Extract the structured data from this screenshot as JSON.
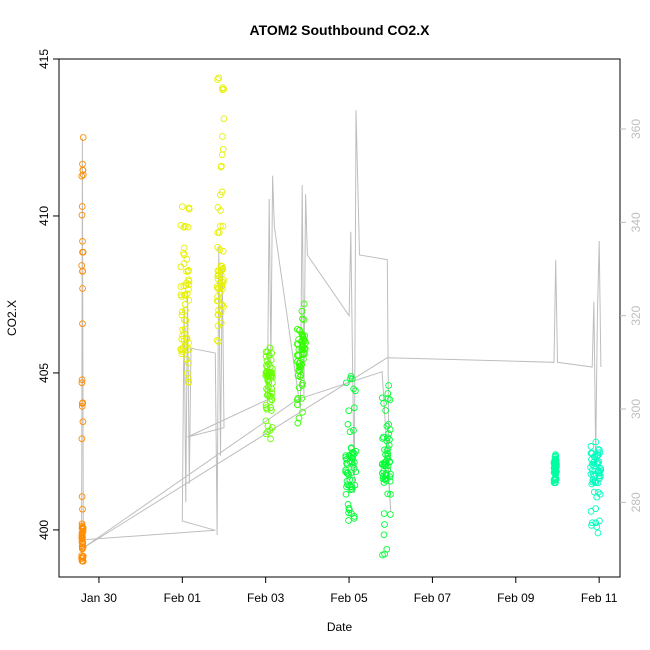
{
  "chart_data": {
    "type": "scatter",
    "title": "ATOM2 Southbound CO2.X",
    "xlabel": "Date",
    "ylabel": "CO2.X",
    "xlim": [
      "2016-01-29 01:00",
      "2016-02-11 12:00"
    ],
    "ylim": [
      398.5,
      415
    ],
    "y2lim": [
      264,
      375
    ],
    "x_ticks": [
      "Jan 30",
      "Feb 01",
      "Feb 03",
      "Feb 05",
      "Feb 07",
      "Feb 09",
      "Feb 11"
    ],
    "y_ticks": [
      400,
      405,
      410,
      415
    ],
    "y2_ticks": [
      280,
      300,
      320,
      340,
      360
    ],
    "grid": false,
    "legend": "none",
    "point_clusters": [
      {
        "x_start": "2016-01-29 14:00",
        "x_end": "2016-01-29 15:00",
        "y_min": 399.0,
        "y_max": 412.5,
        "color": "#ff8c00",
        "dense": [
          [
            399.0,
            400.2
          ]
        ]
      },
      {
        "x_start": "2016-01-31 23:00",
        "x_end": "2016-02-01 04:00",
        "y_min": 404.7,
        "y_max": 410.3,
        "color": "#e6f000",
        "dense": [
          [
            405.5,
            408.5
          ]
        ]
      },
      {
        "x_start": "2016-02-01 20:00",
        "x_end": "2016-02-02 00:00",
        "y_min": 406.0,
        "y_max": 414.4,
        "color": "#e6f000",
        "dense": [
          [
            406.5,
            408.5
          ]
        ]
      },
      {
        "x_start": "2016-02-03 00:00",
        "x_end": "2016-02-03 04:00",
        "y_min": 402.9,
        "y_max": 405.8,
        "color": "#66ff00",
        "dense": [
          [
            403.8,
            405.2
          ]
        ]
      },
      {
        "x_start": "2016-02-03 18:00",
        "x_end": "2016-02-03 23:00",
        "y_min": 403.4,
        "y_max": 407.2,
        "color": "#33ff00",
        "dense": [
          [
            404.9,
            406.4
          ]
        ]
      },
      {
        "x_start": "2016-02-04 22:00",
        "x_end": "2016-02-05 04:00",
        "y_min": 400.3,
        "y_max": 404.9,
        "color": "#00ff33",
        "dense": [
          [
            401.2,
            402.6
          ]
        ]
      },
      {
        "x_start": "2016-02-05 19:00",
        "x_end": "2016-02-06 00:00",
        "y_min": 399.2,
        "y_max": 404.6,
        "color": "#00ff33",
        "dense": [
          [
            401.5,
            403.0
          ]
        ]
      },
      {
        "x_start": "2016-02-09 22:00",
        "x_end": "2016-02-09 23:30",
        "y_min": 401.5,
        "y_max": 402.4,
        "color": "#00ffa0",
        "dense": [
          [
            401.6,
            402.2
          ]
        ]
      },
      {
        "x_start": "2016-02-10 19:00",
        "x_end": "2016-02-11 01:00",
        "y_min": 399.9,
        "y_max": 402.8,
        "color": "#00ffbf",
        "dense": [
          [
            401.5,
            402.5
          ]
        ]
      }
    ],
    "secondary_line": {
      "color": "#bebebe",
      "points": [
        [
          "2016-01-29 14:00",
          270
        ],
        [
          "2016-01-29 14:30",
          358
        ],
        [
          "2016-01-29 15:00",
          272
        ],
        [
          "2016-02-01 19:00",
          274
        ],
        [
          "2016-02-01 00:00",
          276
        ],
        [
          "2016-02-01 01:00",
          322
        ],
        [
          "2016-02-01 02:00",
          280
        ],
        [
          "2016-02-01 03:00",
          325
        ],
        [
          "2016-02-01 04:00",
          284
        ],
        [
          "2016-02-01 05:00",
          313
        ],
        [
          "2016-02-01 19:00",
          312
        ],
        [
          "2016-02-01 20:00",
          273
        ],
        [
          "2016-02-01 21:00",
          335
        ],
        [
          "2016-02-01 22:00",
          290
        ],
        [
          "2016-02-01 23:00",
          330
        ],
        [
          "2016-02-02 00:00",
          296
        ],
        [
          "2016-02-01 03:00",
          294
        ],
        [
          "2016-02-03 01:00",
          302
        ],
        [
          "2016-02-03 02:00",
          345
        ],
        [
          "2016-02-03 03:00",
          310
        ],
        [
          "2016-02-03 04:00",
          350
        ],
        [
          "2016-02-03 05:00",
          339
        ],
        [
          "2016-02-03 20:00",
          300
        ],
        [
          "2016-02-03 21:00",
          348
        ],
        [
          "2016-02-03 22:00",
          303
        ],
        [
          "2016-02-03 23:00",
          346
        ],
        [
          "2016-02-04 00:00",
          333
        ],
        [
          "2016-02-05 00:00",
          320
        ],
        [
          "2016-02-05 01:00",
          338
        ],
        [
          "2016-02-05 03:00",
          282
        ],
        [
          "2016-02-05 04:00",
          364
        ],
        [
          "2016-02-05 06:00",
          333
        ],
        [
          "2016-02-05 22:00",
          332
        ],
        [
          "2016-02-05 23:00",
          285
        ],
        [
          "2016-02-06 00:00",
          278
        ],
        [
          "2016-02-05 19:00",
          308
        ],
        [
          "2016-02-03 18:00",
          302
        ],
        [
          "2016-01-29 14:00",
          270
        ],
        [
          "2016-02-05 22:00",
          311
        ],
        [
          "2016-02-09 22:00",
          310
        ],
        [
          "2016-02-09 23:00",
          332
        ],
        [
          "2016-02-10 00:00",
          310
        ],
        [
          "2016-02-10 20:00",
          309
        ],
        [
          "2016-02-10 21:00",
          323
        ],
        [
          "2016-02-10 22:00",
          290
        ],
        [
          "2016-02-10 23:00",
          320
        ],
        [
          "2016-02-11 00:00",
          336
        ],
        [
          "2016-02-11 01:00",
          309
        ]
      ]
    }
  }
}
